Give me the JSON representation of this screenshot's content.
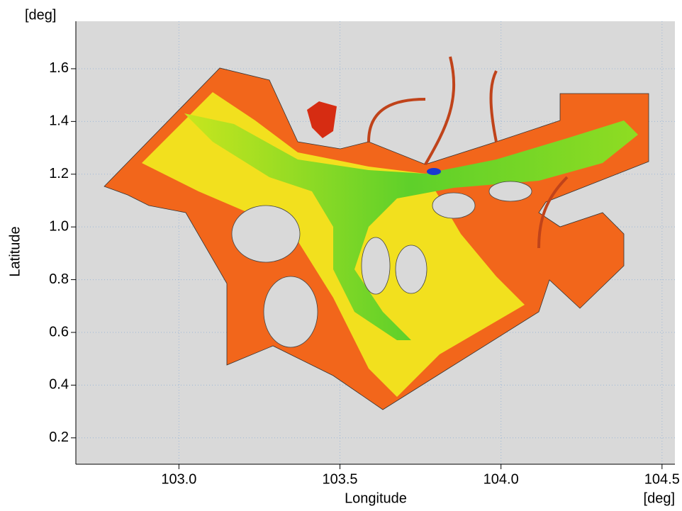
{
  "plot": {
    "xlabel": "Longitude",
    "ylabel": "Latitude",
    "xunit": "[deg]",
    "yunit": "[deg]",
    "xlim": [
      102.68,
      104.54
    ],
    "ylim": [
      0.1,
      1.78
    ],
    "xticks": [
      {
        "value": 103,
        "label": "103.0"
      },
      {
        "value": 103.5,
        "label": "103.5"
      },
      {
        "value": 104,
        "label": "104.0"
      },
      {
        "value": 104.5,
        "label": "104.5"
      }
    ],
    "yticks": [
      0.2,
      0.4,
      0.6,
      0.8,
      {
        "value": 1,
        "label": "1.0"
      },
      1.2,
      1.4,
      1.6
    ],
    "grid": true
  }
}
